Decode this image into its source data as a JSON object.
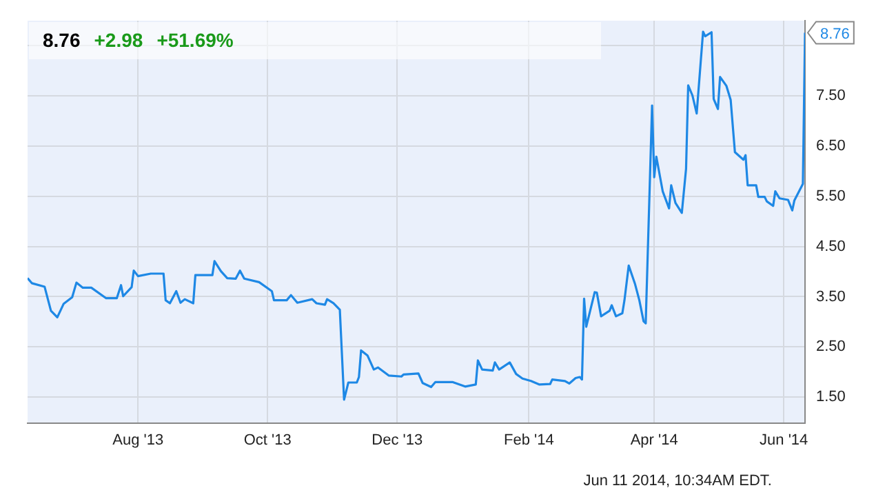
{
  "chart_data": {
    "type": "line",
    "color": "#1e88e5",
    "marker": "none",
    "grid": true,
    "legend": false,
    "annotations": [
      "8.76",
      "+2.98",
      "+51.69%",
      "Jun 11 2014, 10:34AM EDT.",
      {
        "text": "8.76",
        "x": "2014-06-11",
        "y": 8.76
      }
    ],
    "xlim": [
      "2013-06-10",
      "2014-06-11"
    ],
    "xticks": [
      {
        "value": "2013-08-01",
        "label": "Aug '13"
      },
      {
        "value": "2013-10-01",
        "label": "Oct '13"
      },
      {
        "value": "2013-12-01",
        "label": "Dec '13"
      },
      {
        "value": "2014-02-01",
        "label": "Feb '14"
      },
      {
        "value": "2014-04-01",
        "label": "Apr '14"
      },
      {
        "value": "2014-06-01",
        "label": "Jun '14"
      }
    ],
    "ylim": [
      0.98,
      9.0
    ],
    "yticks": [
      {
        "value": 1.5,
        "label": "1.50"
      },
      {
        "value": 2.5,
        "label": "2.50"
      },
      {
        "value": 3.5,
        "label": "3.50"
      },
      {
        "value": 4.5,
        "label": "4.50"
      },
      {
        "value": 5.5,
        "label": "5.50"
      },
      {
        "value": 6.5,
        "label": "6.50"
      },
      {
        "value": 7.5,
        "label": "7.50"
      },
      {
        "value": 8.5,
        "label": null
      }
    ],
    "x": [
      "2013-06-10",
      "2013-06-12",
      "2013-06-18",
      "2013-06-21",
      "2013-06-24",
      "2013-06-27",
      "2013-07-01",
      "2013-07-03",
      "2013-07-06",
      "2013-07-10",
      "2013-07-17",
      "2013-07-22",
      "2013-07-24",
      "2013-07-25",
      "2013-07-29",
      "2013-07-30",
      "2013-08-01",
      "2013-08-07",
      "2013-08-13",
      "2013-08-14",
      "2013-08-16",
      "2013-08-19",
      "2013-08-21",
      "2013-08-23",
      "2013-08-27",
      "2013-08-28",
      "2013-09-05",
      "2013-09-06",
      "2013-09-09",
      "2013-09-12",
      "2013-09-16",
      "2013-09-18",
      "2013-09-20",
      "2013-09-27",
      "2013-10-03",
      "2013-10-04",
      "2013-10-10",
      "2013-10-12",
      "2013-10-15",
      "2013-10-22",
      "2013-10-24",
      "2013-10-28",
      "2013-10-29",
      "2013-11-01",
      "2013-11-04",
      "2013-11-06",
      "2013-11-08",
      "2013-11-12",
      "2013-11-13",
      "2013-11-14",
      "2013-11-17",
      "2013-11-20",
      "2013-11-22",
      "2013-11-27",
      "2013-12-03",
      "2013-12-04",
      "2013-12-11",
      "2013-12-13",
      "2013-12-17",
      "2013-12-19",
      "2013-12-27",
      "2014-01-02",
      "2014-01-07",
      "2014-01-08",
      "2014-01-10",
      "2014-01-15",
      "2014-01-16",
      "2014-01-18",
      "2014-01-23",
      "2014-01-26",
      "2014-01-29",
      "2014-02-02",
      "2014-02-06",
      "2014-02-11",
      "2014-02-12",
      "2014-02-18",
      "2014-02-20",
      "2014-02-23",
      "2014-02-25",
      "2014-02-26",
      "2014-02-27",
      "2014-02-28",
      "2014-03-04",
      "2014-03-05",
      "2014-03-07",
      "2014-03-11",
      "2014-03-12",
      "2014-03-14",
      "2014-03-17",
      "2014-03-18",
      "2014-03-20",
      "2014-03-23",
      "2014-03-25",
      "2014-03-27",
      "2014-03-28",
      "2014-03-31",
      "2014-04-01",
      "2014-04-02",
      "2014-04-05",
      "2014-04-08",
      "2014-04-09",
      "2014-04-11",
      "2014-04-14",
      "2014-04-16",
      "2014-04-17",
      "2014-04-19",
      "2014-04-21",
      "2014-04-24",
      "2014-04-25",
      "2014-04-28",
      "2014-04-29",
      "2014-05-01",
      "2014-05-02",
      "2014-05-05",
      "2014-05-07",
      "2014-05-09",
      "2014-05-13",
      "2014-05-14",
      "2014-05-15",
      "2014-05-19",
      "2014-05-20",
      "2014-05-23",
      "2014-05-24",
      "2014-05-27",
      "2014-05-28",
      "2014-05-30",
      "2014-06-03",
      "2014-06-05",
      "2014-06-06",
      "2014-06-10",
      "2014-06-11"
    ],
    "values": [
      3.87,
      3.77,
      3.7,
      3.22,
      3.09,
      3.36,
      3.49,
      3.78,
      3.68,
      3.68,
      3.47,
      3.47,
      3.73,
      3.51,
      3.69,
      4.02,
      3.91,
      3.96,
      3.96,
      3.43,
      3.37,
      3.61,
      3.38,
      3.45,
      3.37,
      3.93,
      3.93,
      4.21,
      4.01,
      3.87,
      3.86,
      4.02,
      3.86,
      3.79,
      3.61,
      3.43,
      3.43,
      3.53,
      3.38,
      3.45,
      3.37,
      3.34,
      3.45,
      3.37,
      3.24,
      1.45,
      1.79,
      1.79,
      1.9,
      2.43,
      2.33,
      2.05,
      2.09,
      1.93,
      1.91,
      1.95,
      1.97,
      1.78,
      1.7,
      1.8,
      1.8,
      1.71,
      1.75,
      2.23,
      2.05,
      2.03,
      2.19,
      2.05,
      2.19,
      1.96,
      1.87,
      1.82,
      1.75,
      1.76,
      1.85,
      1.82,
      1.77,
      1.88,
      1.9,
      1.85,
      3.46,
      2.9,
      3.59,
      3.58,
      3.11,
      3.22,
      3.33,
      3.11,
      3.17,
      3.43,
      4.12,
      3.75,
      3.43,
      3.01,
      2.97,
      7.31,
      5.88,
      6.29,
      5.6,
      5.26,
      5.72,
      5.37,
      5.17,
      6.05,
      7.71,
      7.51,
      7.15,
      8.78,
      8.69,
      8.77,
      7.44,
      7.24,
      7.88,
      7.7,
      7.42,
      6.38,
      6.23,
      6.32,
      5.72,
      5.72,
      5.49,
      5.49,
      5.4,
      5.31,
      5.6,
      5.46,
      5.43,
      5.22,
      5.42,
      5.75,
      8.76
    ]
  }
}
